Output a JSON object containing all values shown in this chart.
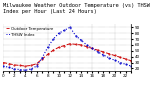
{
  "title": "Milwaukee Weather Outdoor Temperature (vs) THSW Index per Hour (Last 24 Hours)",
  "background_color": "#ffffff",
  "plot_bg_color": "#ffffff",
  "grid_color": "#888888",
  "hours": [
    0,
    1,
    2,
    3,
    4,
    5,
    6,
    7,
    8,
    9,
    10,
    11,
    12,
    13,
    14,
    15,
    16,
    17,
    18,
    19,
    20,
    21,
    22,
    23
  ],
  "temp": [
    30,
    28,
    26,
    25,
    24,
    25,
    28,
    36,
    44,
    51,
    56,
    59,
    62,
    61,
    60,
    57,
    54,
    51,
    48,
    45,
    42,
    39,
    36,
    33
  ],
  "thsw": [
    24,
    22,
    19,
    18,
    17,
    19,
    24,
    38,
    56,
    70,
    80,
    85,
    90,
    76,
    68,
    60,
    54,
    48,
    43,
    38,
    34,
    30,
    27,
    24
  ],
  "temp_color": "#cc0000",
  "thsw_color": "#0000cc",
  "ylim": [
    15,
    95
  ],
  "ytick_labels": [
    "20",
    "30",
    "40",
    "50",
    "60",
    "70",
    "80",
    "90"
  ],
  "ytick_values": [
    20,
    30,
    40,
    50,
    60,
    70,
    80,
    90
  ],
  "grid_x": [
    0,
    4,
    8,
    12,
    16,
    20,
    23
  ],
  "title_fontsize": 3.8,
  "tick_fontsize": 3.0,
  "legend_fontsize": 2.8,
  "legend_items": [
    "Outdoor Temperature",
    "THSW Index"
  ],
  "legend_colors": [
    "#cc0000",
    "#0000cc"
  ]
}
